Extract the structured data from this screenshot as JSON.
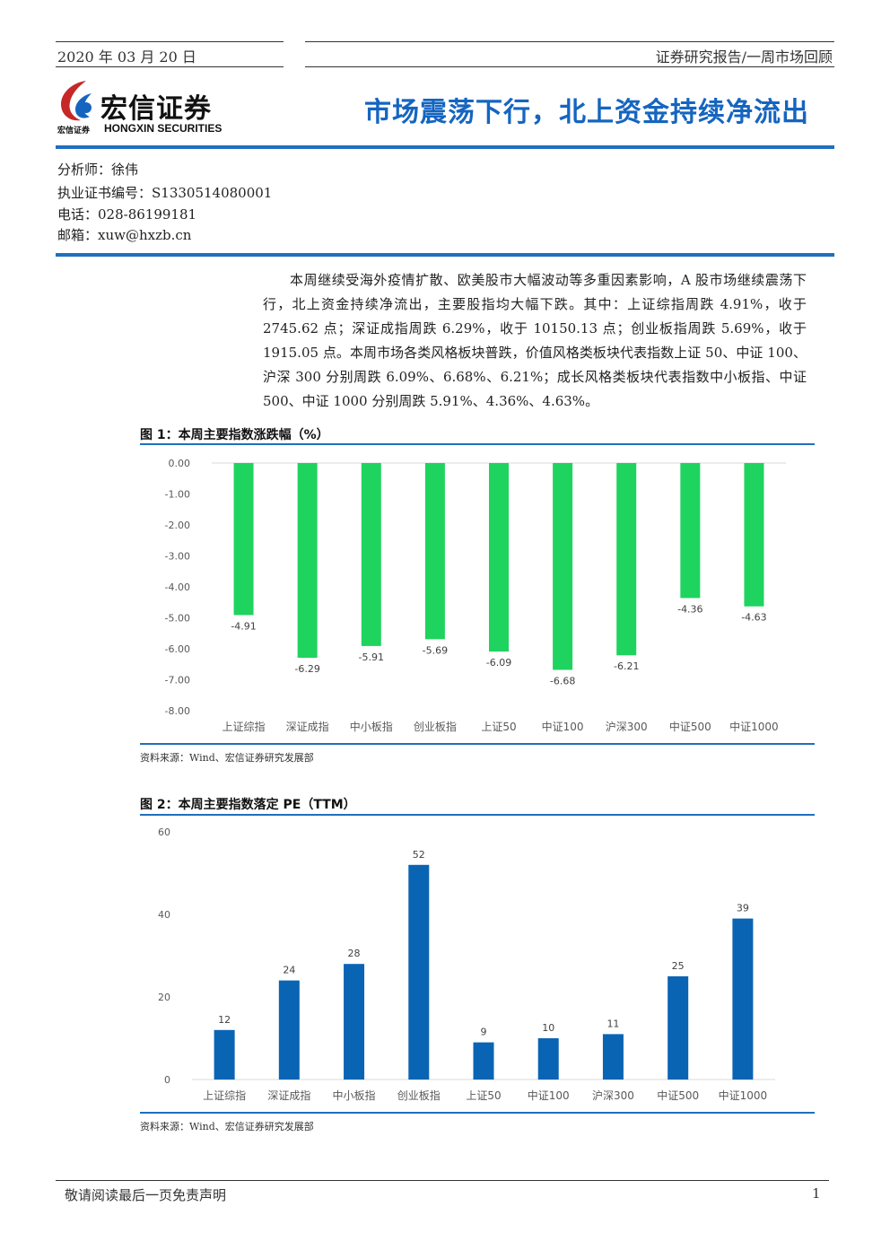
{
  "header": {
    "date": "2020 年 03 月 20 日",
    "category": "证券研究报告/一周市场回顾"
  },
  "logo": {
    "name_cn": "宏信证券",
    "name_en": "HONGXIN SECURITIES",
    "small_cn": "宏信证券"
  },
  "title": "市场震荡下行，北上资金持续净流出",
  "analyst": {
    "name": "分析师：徐伟",
    "license": "执业证书编号：S1330514080001",
    "phone": "电话：028-86199181",
    "email": "邮箱：xuw@hxzb.cn"
  },
  "summary": "本周继续受海外疫情扩散、欧美股市大幅波动等多重因素影响，A 股市场继续震荡下行，北上资金持续净流出，主要股指均大幅下跌。其中：上证综指周跌 4.91%，收于 2745.62 点；深证成指周跌 6.29%，收于 10150.13 点；创业板指周跌 5.69%，收于 1915.05 点。本周市场各类风格板块普跌，价值风格类板块代表指数上证 50、中证 100、沪深 300 分别周跌 6.09%、6.68%、6.21%；成长风格类板块代表指数中小板指、中证 500、中证 1000 分别周跌 5.91%、4.36%、4.63%。",
  "figure1": {
    "title": "图 1：本周主要指数涨跌幅（%）",
    "source": "资料来源：Wind、宏信证券研究发展部"
  },
  "figure2": {
    "title": "图 2：本周主要指数落定 PE（TTM）",
    "source": "资料来源：Wind、宏信证券研究发展部"
  },
  "chart_data": [
    {
      "type": "bar",
      "categories": [
        "上证综指",
        "深证成指",
        "中小板指",
        "创业板指",
        "上证50",
        "中证100",
        "沪深300",
        "中证500",
        "中证1000"
      ],
      "values": [
        -4.91,
        -6.29,
        -5.91,
        -5.69,
        -6.09,
        -6.68,
        -6.21,
        -4.36,
        -4.63
      ],
      "data_labels": [
        "-4.91",
        "-6.29",
        "-5.91",
        "-5.69",
        "-6.09",
        "-6.68",
        "-6.21",
        "-4.36",
        "-4.63"
      ],
      "yticks": [
        "0.00",
        "-1.00",
        "-2.00",
        "-3.00",
        "-4.00",
        "-5.00",
        "-6.00",
        "-7.00",
        "-8.00"
      ],
      "ylim": [
        -8,
        0
      ],
      "color": "#1fd35f",
      "grid": false
    },
    {
      "type": "bar",
      "categories": [
        "上证综指",
        "深证成指",
        "中小板指",
        "创业板指",
        "上证50",
        "中证100",
        "沪深300",
        "中证500",
        "中证1000"
      ],
      "values": [
        12,
        24,
        28,
        52,
        9,
        10,
        11,
        25,
        39
      ],
      "data_labels": [
        "12",
        "24",
        "28",
        "52",
        "9",
        "10",
        "11",
        "25",
        "39"
      ],
      "yticks": [
        "60",
        "40",
        "20",
        "0"
      ],
      "ylim": [
        0,
        60
      ],
      "color": "#0a64b4",
      "grid": false
    }
  ],
  "footer": {
    "disclaimer": "敬请阅读最后一页免责声明",
    "page": "1"
  }
}
